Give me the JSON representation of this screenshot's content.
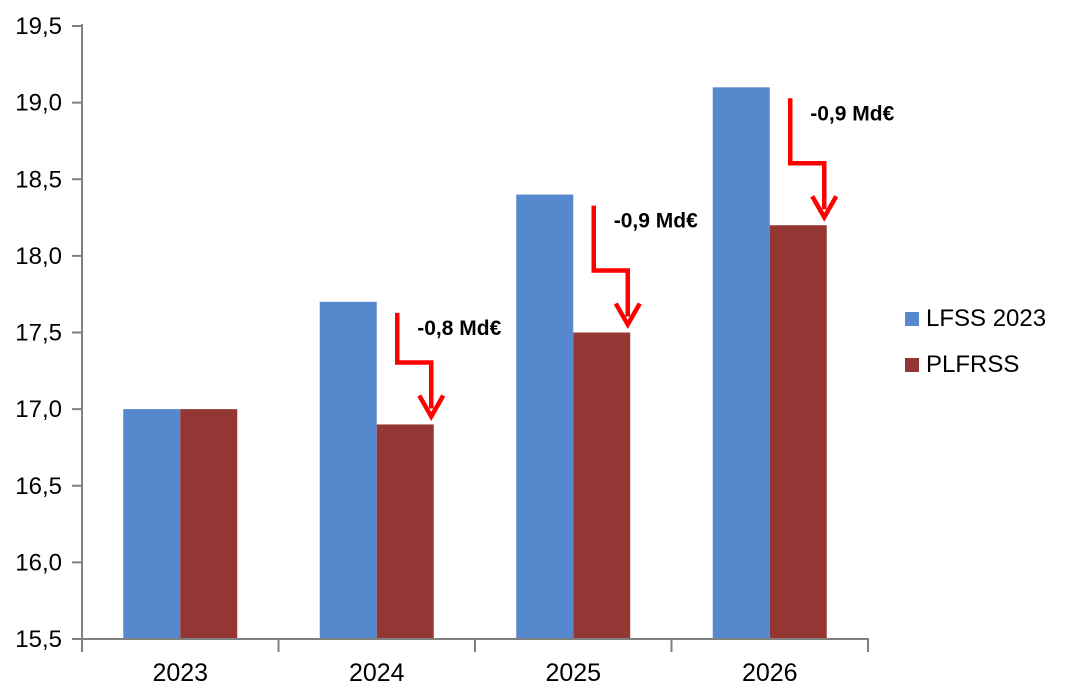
{
  "chart_data": {
    "type": "bar",
    "categories": [
      "2023",
      "2024",
      "2025",
      "2026"
    ],
    "series": [
      {
        "name": "LFSS 2023",
        "color": "#5588CD",
        "values": [
          17.0,
          17.7,
          18.4,
          19.1
        ]
      },
      {
        "name": "PLFRSS",
        "color": "#943734",
        "values": [
          17.0,
          16.9,
          17.5,
          18.2
        ]
      }
    ],
    "title": "",
    "xlabel": "",
    "ylabel": "",
    "ylim": [
      15.5,
      19.5
    ],
    "ytick_step": 0.5,
    "ytick_labels": [
      "15,5",
      "16,0",
      "16,5",
      "17,0",
      "17,5",
      "18,0",
      "18,5",
      "19,0",
      "19,5"
    ],
    "grid": false,
    "legend_position": "right",
    "annotations": [
      {
        "category": "2024",
        "label": "-0,8 Md€"
      },
      {
        "category": "2025",
        "label": "-0,9 Md€"
      },
      {
        "category": "2026",
        "label": "-0,9 Md€"
      }
    ],
    "annotation_color": "#FF0000",
    "axis_color": "#808080",
    "text_color": "#000000"
  }
}
